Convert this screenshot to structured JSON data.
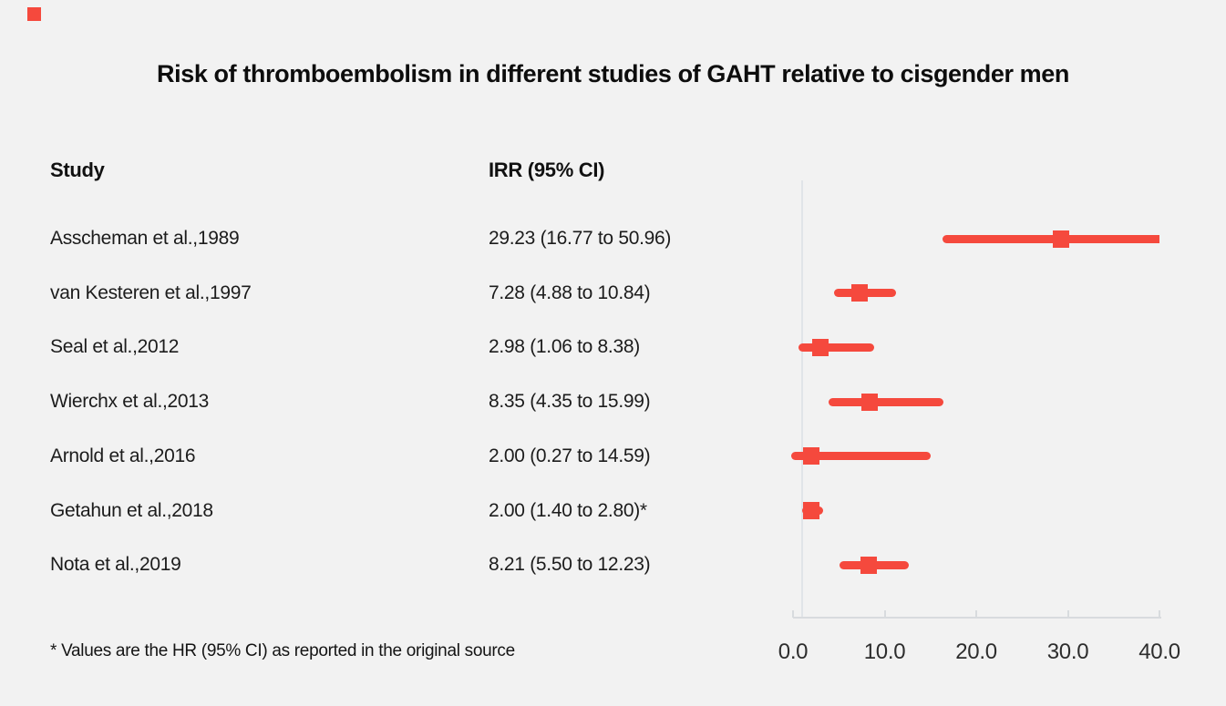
{
  "page": {
    "background_color": "#f2f2f2",
    "accent_color": "#f5493d"
  },
  "title": "Risk of thromboembolism in different studies of GAHT relative to cisgender men",
  "columns": {
    "study_header": "Study",
    "irr_header": "IRR (95% CI)"
  },
  "footnote": "* Values are the HR (95% CI) as reported in the original source",
  "chart_data": {
    "type": "scatter",
    "subtype": "forest-plot",
    "title": "Risk of thromboembolism in different studies of GAHT relative to cisgender men",
    "xlabel": "",
    "ylabel": "",
    "xlim": [
      0,
      40
    ],
    "x_ticks": [
      0,
      10,
      20,
      30,
      40
    ],
    "x_tick_labels": [
      "0.0",
      "10.0",
      "20.0",
      "30.0",
      "40.0"
    ],
    "reference_line_x": 1.0,
    "grid": false,
    "legend": "none",
    "marker_color": "#f5493d",
    "marker_shape": "square",
    "studies": [
      {
        "label": "Asscheman et al.,1989",
        "irr_text": "29.23 (16.77 to 50.96)",
        "irr": 29.23,
        "ci_low": 16.77,
        "ci_high": 50.96
      },
      {
        "label": "van Kesteren et al.,1997",
        "irr_text": "7.28 (4.88 to 10.84)",
        "irr": 7.28,
        "ci_low": 4.88,
        "ci_high": 10.84
      },
      {
        "label": "Seal et al.,2012",
        "irr_text": "2.98 (1.06 to 8.38)",
        "irr": 2.98,
        "ci_low": 1.06,
        "ci_high": 8.38
      },
      {
        "label": "Wierchx et al.,2013",
        "irr_text": "8.35 (4.35 to 15.99)",
        "irr": 8.35,
        "ci_low": 4.35,
        "ci_high": 15.99
      },
      {
        "label": "Arnold et al.,2016",
        "irr_text": "2.00 (0.27 to 14.59)",
        "irr": 2.0,
        "ci_low": 0.27,
        "ci_high": 14.59
      },
      {
        "label": "Getahun et al.,2018",
        "irr_text": "2.00 (1.40 to 2.80)*",
        "irr": 2.0,
        "ci_low": 1.4,
        "ci_high": 2.8
      },
      {
        "label": "Nota et al.,2019",
        "irr_text": "8.21 (5.50 to 12.23)",
        "irr": 8.21,
        "ci_low": 5.5,
        "ci_high": 12.23
      }
    ]
  }
}
